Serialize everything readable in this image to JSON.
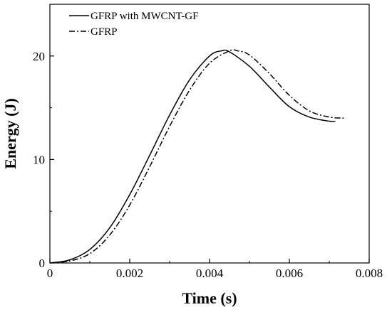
{
  "chart_data": {
    "type": "line",
    "xlabel": "Time (s)",
    "ylabel": "Energy (J)",
    "xlim": [
      0,
      0.008
    ],
    "ylim": [
      0,
      25
    ],
    "x_ticks": [
      "0",
      "0.002",
      "0.004",
      "0.006",
      "0.008"
    ],
    "y_ticks": [
      "0",
      "10",
      "20"
    ],
    "legend_position": "top-left",
    "grid": false,
    "series": [
      {
        "name": "GFRP with MWCNT-GF",
        "line_style": "solid",
        "color": "#000000",
        "x": [
          0,
          0.0005,
          0.001,
          0.0015,
          0.002,
          0.0025,
          0.003,
          0.0035,
          0.004,
          0.0043,
          0.0045,
          0.005,
          0.0055,
          0.006,
          0.0065,
          0.007,
          0.00715
        ],
        "y": [
          0,
          0.3,
          1.3,
          3.4,
          6.6,
          10.4,
          14.3,
          17.7,
          20.0,
          20.5,
          20.4,
          19.0,
          17.0,
          15.1,
          14.1,
          13.7,
          13.7
        ]
      },
      {
        "name": "GFRP",
        "line_style": "dash-dot",
        "color": "#000000",
        "x": [
          0,
          0.0005,
          0.001,
          0.0015,
          0.002,
          0.0025,
          0.003,
          0.0035,
          0.004,
          0.0045,
          0.0047,
          0.005,
          0.0055,
          0.006,
          0.0065,
          0.007,
          0.0074
        ],
        "y": [
          0,
          0.2,
          0.9,
          2.7,
          5.6,
          9.3,
          13.2,
          16.7,
          19.3,
          20.5,
          20.5,
          20.1,
          18.3,
          16.2,
          14.7,
          14.1,
          14.0
        ]
      }
    ]
  }
}
